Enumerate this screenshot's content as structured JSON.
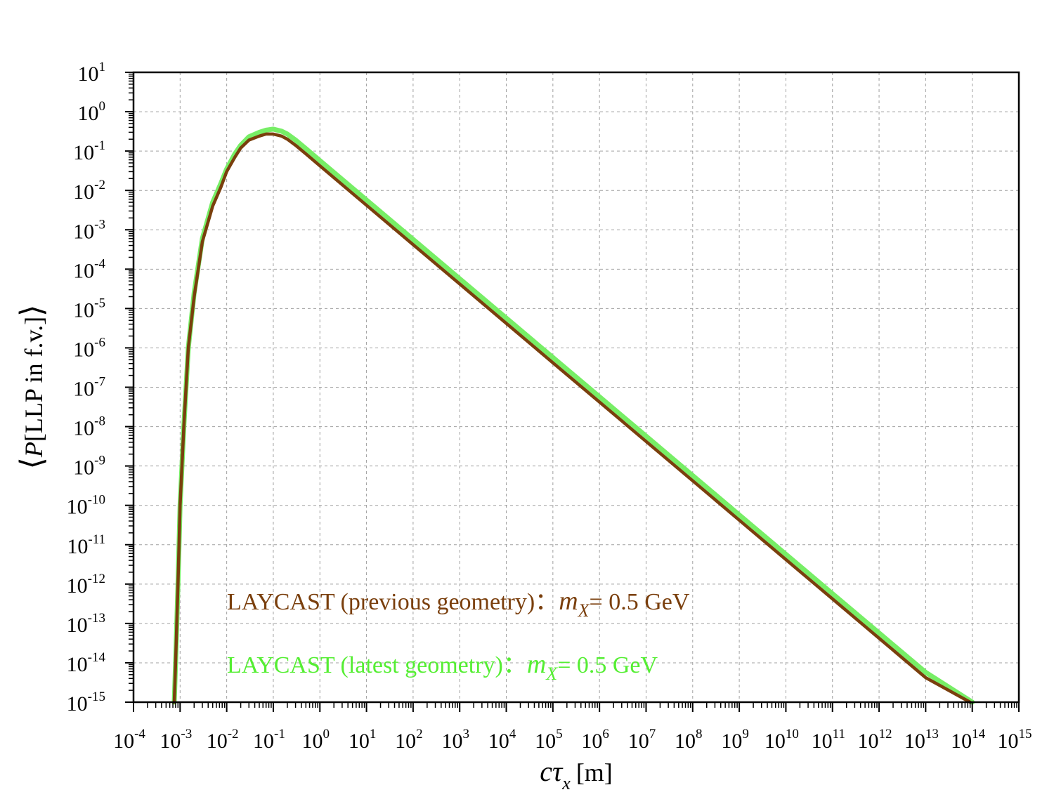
{
  "chart_data": {
    "type": "line",
    "xlabel": "cτ",
    "xlabel_sub": "x",
    "xlabel_unit": "[m]",
    "ylabel_parts": {
      "open": "⟨",
      "italic": "P",
      "rest": "[LLP in f.v.]",
      "close": "⟩"
    },
    "x_scale": "log",
    "y_scale": "log",
    "xlim": [
      0.0001,
      1000000000000000.0
    ],
    "ylim": [
      1e-15,
      10
    ],
    "grid": true,
    "x_ticks": [
      {
        "base": "10",
        "exp": "-4"
      },
      {
        "base": "10",
        "exp": "-3"
      },
      {
        "base": "10",
        "exp": "-2"
      },
      {
        "base": "10",
        "exp": "-1"
      },
      {
        "base": "10",
        "exp": "0"
      },
      {
        "base": "10",
        "exp": "1"
      },
      {
        "base": "10",
        "exp": "2"
      },
      {
        "base": "10",
        "exp": "3"
      },
      {
        "base": "10",
        "exp": "4"
      },
      {
        "base": "10",
        "exp": "5"
      },
      {
        "base": "10",
        "exp": "6"
      },
      {
        "base": "10",
        "exp": "7"
      },
      {
        "base": "10",
        "exp": "8"
      },
      {
        "base": "10",
        "exp": "9"
      },
      {
        "base": "10",
        "exp": "10"
      },
      {
        "base": "10",
        "exp": "11"
      },
      {
        "base": "10",
        "exp": "12"
      },
      {
        "base": "10",
        "exp": "13"
      },
      {
        "base": "10",
        "exp": "14"
      },
      {
        "base": "10",
        "exp": "15"
      }
    ],
    "y_ticks": [
      {
        "base": "10",
        "exp": "1"
      },
      {
        "base": "10",
        "exp": "0"
      },
      {
        "base": "10",
        "exp": "-1"
      },
      {
        "base": "10",
        "exp": "-2"
      },
      {
        "base": "10",
        "exp": "-3"
      },
      {
        "base": "10",
        "exp": "-4"
      },
      {
        "base": "10",
        "exp": "-5"
      },
      {
        "base": "10",
        "exp": "-6"
      },
      {
        "base": "10",
        "exp": "-7"
      },
      {
        "base": "10",
        "exp": "-8"
      },
      {
        "base": "10",
        "exp": "-9"
      },
      {
        "base": "10",
        "exp": "-10"
      },
      {
        "base": "10",
        "exp": "-11"
      },
      {
        "base": "10",
        "exp": "-12"
      },
      {
        "base": "10",
        "exp": "-13"
      },
      {
        "base": "10",
        "exp": "-14"
      },
      {
        "base": "10",
        "exp": "-15"
      }
    ],
    "legend_placement": "bottom-left",
    "series": [
      {
        "name_text": "LAYCAST (previous geometry)：",
        "name_mass": "m",
        "name_sub": "X",
        "name_value": "= 0.5 GeV",
        "color": "#7a3f0d",
        "x": [
          0.00075,
          0.0008,
          0.0009,
          0.001,
          0.0012,
          0.0015,
          0.002,
          0.003,
          0.005,
          0.0075,
          0.01,
          0.015,
          0.02,
          0.03,
          0.05,
          0.07,
          0.1,
          0.15,
          0.2,
          0.3,
          0.5,
          1,
          10,
          100,
          1000,
          10000,
          100000,
          1000000,
          10000000,
          100000000,
          1000000000,
          10000000000,
          100000000000,
          1000000000000,
          10000000000000,
          90000000000000
        ],
        "y": [
          1e-15,
          1e-14,
          1e-12,
          1e-10,
          1e-08,
          1e-06,
          2e-05,
          0.0005,
          0.004,
          0.012,
          0.03,
          0.07,
          0.12,
          0.19,
          0.24,
          0.27,
          0.27,
          0.24,
          0.2,
          0.14,
          0.085,
          0.042,
          0.0042,
          0.00042,
          4.2e-05,
          4.2e-06,
          4.2e-07,
          4.2e-08,
          4.2e-09,
          4.2e-10,
          4.2e-11,
          4.2e-12,
          4.2e-13,
          4.2e-14,
          4.2e-15,
          1e-15
        ]
      },
      {
        "name_text": "LAYCAST (latest geometry)：",
        "name_mass": "m",
        "name_sub": "X",
        "name_value": "= 0.5 GeV",
        "color": "#77ee66",
        "x": [
          0.00075,
          0.0008,
          0.0009,
          0.001,
          0.0012,
          0.0015,
          0.002,
          0.003,
          0.005,
          0.0075,
          0.01,
          0.015,
          0.02,
          0.03,
          0.05,
          0.07,
          0.1,
          0.15,
          0.2,
          0.3,
          0.5,
          1,
          10,
          100,
          1000,
          10000,
          100000,
          1000000,
          10000000,
          100000000,
          1000000000,
          10000000000,
          100000000000,
          1000000000000,
          10000000000000,
          100000000000000
        ],
        "y": [
          1e-15,
          1e-14,
          1e-12,
          1e-10,
          1e-08,
          1e-06,
          2.5e-05,
          0.0006,
          0.005,
          0.015,
          0.035,
          0.085,
          0.14,
          0.23,
          0.3,
          0.34,
          0.36,
          0.32,
          0.27,
          0.19,
          0.115,
          0.057,
          0.0057,
          0.00057,
          5.7e-05,
          5.7e-06,
          5.7e-07,
          5.7e-08,
          5.7e-09,
          5.7e-10,
          5.7e-11,
          5.7e-12,
          5.7e-13,
          5.7e-14,
          5.7e-15,
          1e-15
        ]
      }
    ]
  }
}
